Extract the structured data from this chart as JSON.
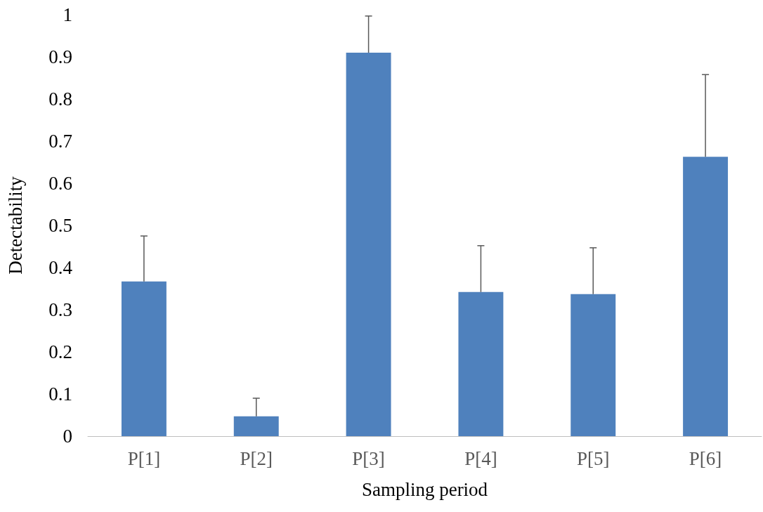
{
  "chart_data": {
    "type": "bar",
    "xlabel": "Sampling period",
    "ylabel": "Detectability",
    "categories": [
      "P[1]",
      "P[2]",
      "P[3]",
      "P[4]",
      "P[5]",
      "P[6]"
    ],
    "values": [
      0.367,
      0.047,
      0.91,
      0.342,
      0.337,
      0.663
    ],
    "errors": [
      [
        0.367,
        0.475
      ],
      [
        0.047,
        0.09
      ],
      [
        0.91,
        0.997
      ],
      [
        0.342,
        0.452
      ],
      [
        0.337,
        0.447
      ],
      [
        0.663,
        0.858
      ]
    ],
    "color": "#4f81bd",
    "ylim": [
      0,
      1
    ],
    "yticks": [
      0,
      0.1,
      0.2,
      0.3,
      0.4,
      0.5,
      0.6,
      0.7,
      0.8,
      0.9,
      1
    ],
    "grid": false
  }
}
